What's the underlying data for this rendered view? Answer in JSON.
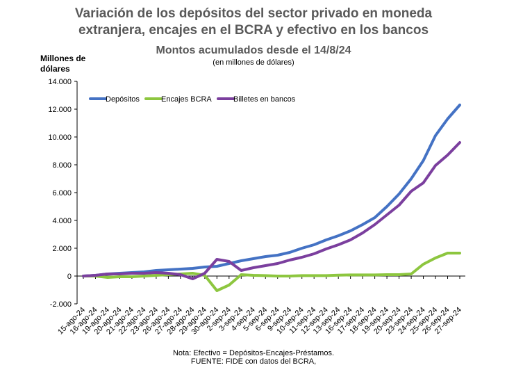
{
  "chart_data": {
    "type": "line",
    "title_lines": [
      "Variación de los depósitos del sector privado en moneda",
      "extranjera, encajes en el BCRA y efectivo en los bancos"
    ],
    "subtitle": "Montos acumulados desde el 14/8/24",
    "subtitle_note": "(en millones de dólares)",
    "ylabel_lines": [
      "Millones de",
      "dólares"
    ],
    "ylim": [
      -2000,
      14000
    ],
    "y_ticks": [
      "14.000",
      "12.000",
      "10.000",
      "8.000",
      "6.000",
      "4.000",
      "2.000",
      "0",
      "-2.000"
    ],
    "y_tick_values": [
      14000,
      12000,
      10000,
      8000,
      6000,
      4000,
      2000,
      0,
      -2000
    ],
    "categories": [
      "15-ago-24",
      "16-ago-24",
      "19-ago-24",
      "20-ago-24",
      "21-ago-24",
      "22-ago-24",
      "23-ago-24",
      "26-ago-24",
      "27-ago-24",
      "28-ago-24",
      "29-ago-24",
      "30-ago-24",
      "2-sep-24",
      "3-sep-24",
      "4-sep-24",
      "5-sep-24",
      "6-sep-24",
      "9-sep-24",
      "10-sep-24",
      "11-sep-24",
      "12-sep-24",
      "13-sep-24",
      "16-sep-24",
      "17-sep-24",
      "18-sep-24",
      "19-sep-24",
      "20-sep-24",
      "23-sep-24",
      "24-sep-24",
      "25-sep-24",
      "26-sep-24",
      "27-sep-24"
    ],
    "series": [
      {
        "name": "Depósitos",
        "color": "#4472C4",
        "values": [
          0,
          50,
          150,
          200,
          250,
          300,
          400,
          450,
          500,
          550,
          650,
          700,
          900,
          1100,
          1250,
          1400,
          1500,
          1700,
          2000,
          2250,
          2600,
          2900,
          3250,
          3700,
          4200,
          5000,
          5900,
          7000,
          8300,
          10100,
          11300,
          12300
        ]
      },
      {
        "name": "Encajes BCRA",
        "color": "#8DC63F",
        "values": [
          0,
          0,
          -100,
          -50,
          -50,
          0,
          50,
          100,
          150,
          200,
          50,
          -1050,
          -650,
          100,
          50,
          30,
          0,
          0,
          30,
          30,
          30,
          60,
          80,
          80,
          80,
          100,
          100,
          150,
          850,
          1300,
          1650,
          1650
        ]
      },
      {
        "name": "Billetes en bancos",
        "color": "#7B3F9E",
        "values": [
          0,
          50,
          150,
          150,
          200,
          200,
          250,
          200,
          100,
          -200,
          200,
          1200,
          1050,
          400,
          600,
          750,
          900,
          1150,
          1350,
          1600,
          1950,
          2250,
          2600,
          3100,
          3700,
          4400,
          5100,
          6100,
          6700,
          7950,
          8700,
          9600
        ]
      }
    ],
    "legend_position": "top-left",
    "grid": false
  },
  "footer": {
    "note": "Nota: Efectivo = Depósitos-Encajes-Préstamos.",
    "source": "FUENTE: FIDE con datos del BCRA,"
  }
}
